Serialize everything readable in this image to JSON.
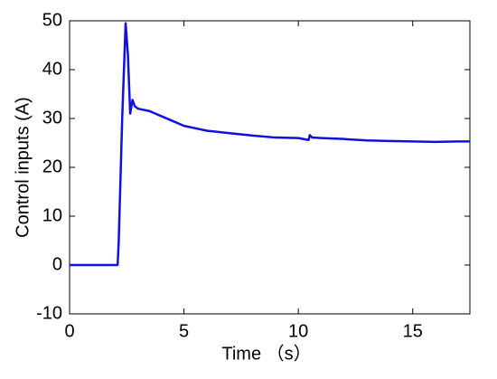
{
  "chart_data": {
    "type": "line",
    "xlabel": "Time （s）",
    "ylabel": "Control inputs (A)",
    "x": [
      0,
      1,
      2.1,
      2.15,
      2.3,
      2.45,
      2.55,
      2.65,
      2.75,
      2.85,
      3,
      3.5,
      4,
      4.5,
      5,
      5.5,
      6,
      7,
      8,
      9,
      10,
      10.45,
      10.5,
      10.6,
      11,
      12,
      13,
      14,
      15,
      16,
      17,
      17.5
    ],
    "series": [
      {
        "color": "#1010e0",
        "values": [
          0,
          0,
          0,
          5,
          30,
          49.5,
          43,
          31,
          33.8,
          32.5,
          32,
          31.5,
          30.5,
          29.5,
          28.5,
          28,
          27.5,
          27,
          26.5,
          26.1,
          26,
          25.6,
          26.6,
          26.1,
          26,
          25.8,
          25.5,
          25.4,
          25.3,
          25.2,
          25.3,
          25.3
        ]
      }
    ],
    "xlim": [
      0,
      17.5
    ],
    "xticks": [
      0,
      5,
      10,
      15
    ],
    "ylim": [
      -10,
      50
    ],
    "yticks": [
      -10,
      0,
      10,
      20,
      30,
      40,
      50
    ]
  }
}
